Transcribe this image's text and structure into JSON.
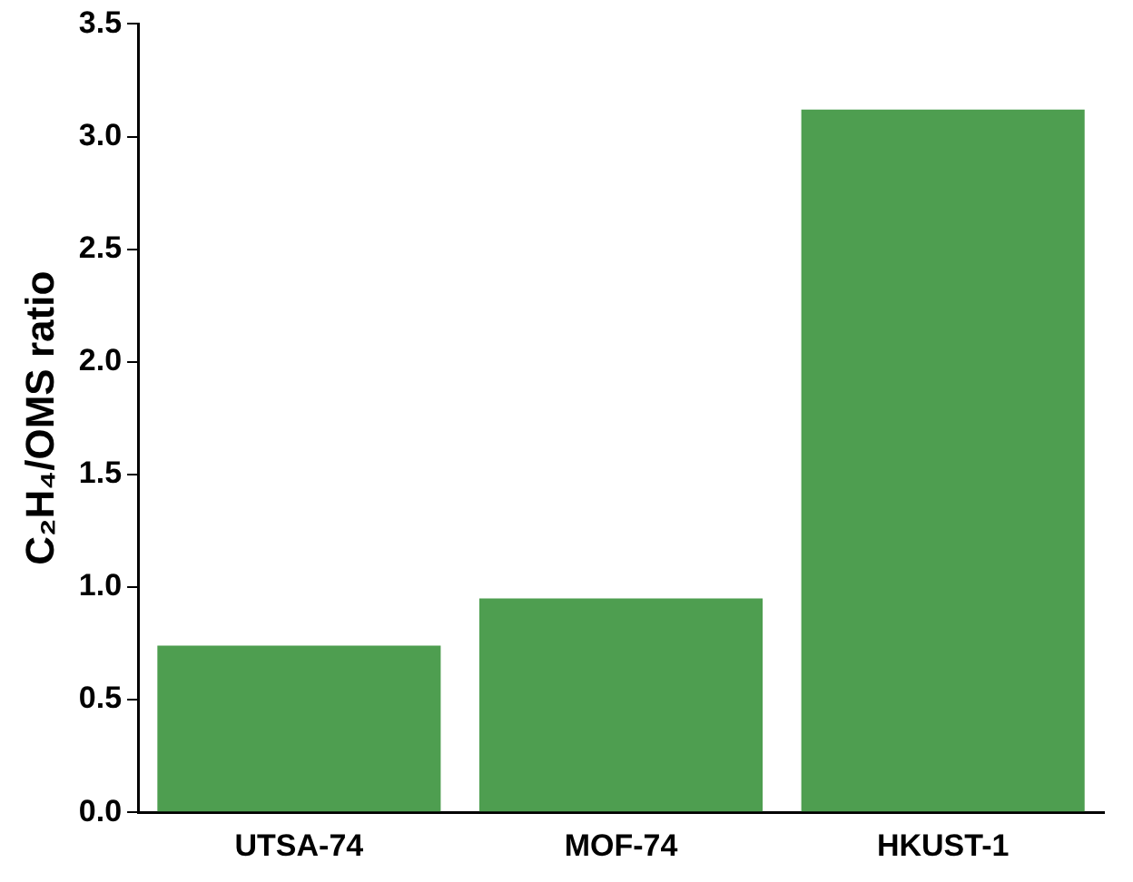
{
  "chart_data": {
    "type": "bar",
    "ylabel": "C₂H₄/OMS ratio",
    "categories": [
      "UTSA-74",
      "MOF-74",
      "HKUST-1"
    ],
    "values": [
      0.74,
      0.95,
      3.12
    ],
    "color": "#4e9e50",
    "ylim": [
      0,
      3.5
    ],
    "yticks": [
      {
        "value": 0,
        "label": "0.0"
      },
      {
        "value": 0.5,
        "label": "0.5"
      },
      {
        "value": 1,
        "label": "1.0"
      },
      {
        "value": 1.5,
        "label": "1.5"
      },
      {
        "value": 2,
        "label": "2.0"
      },
      {
        "value": 2.5,
        "label": "2.5"
      },
      {
        "value": 3,
        "label": "3.0"
      },
      {
        "value": 3.5,
        "label": "3.5"
      }
    ],
    "grid": false,
    "legend": false
  }
}
